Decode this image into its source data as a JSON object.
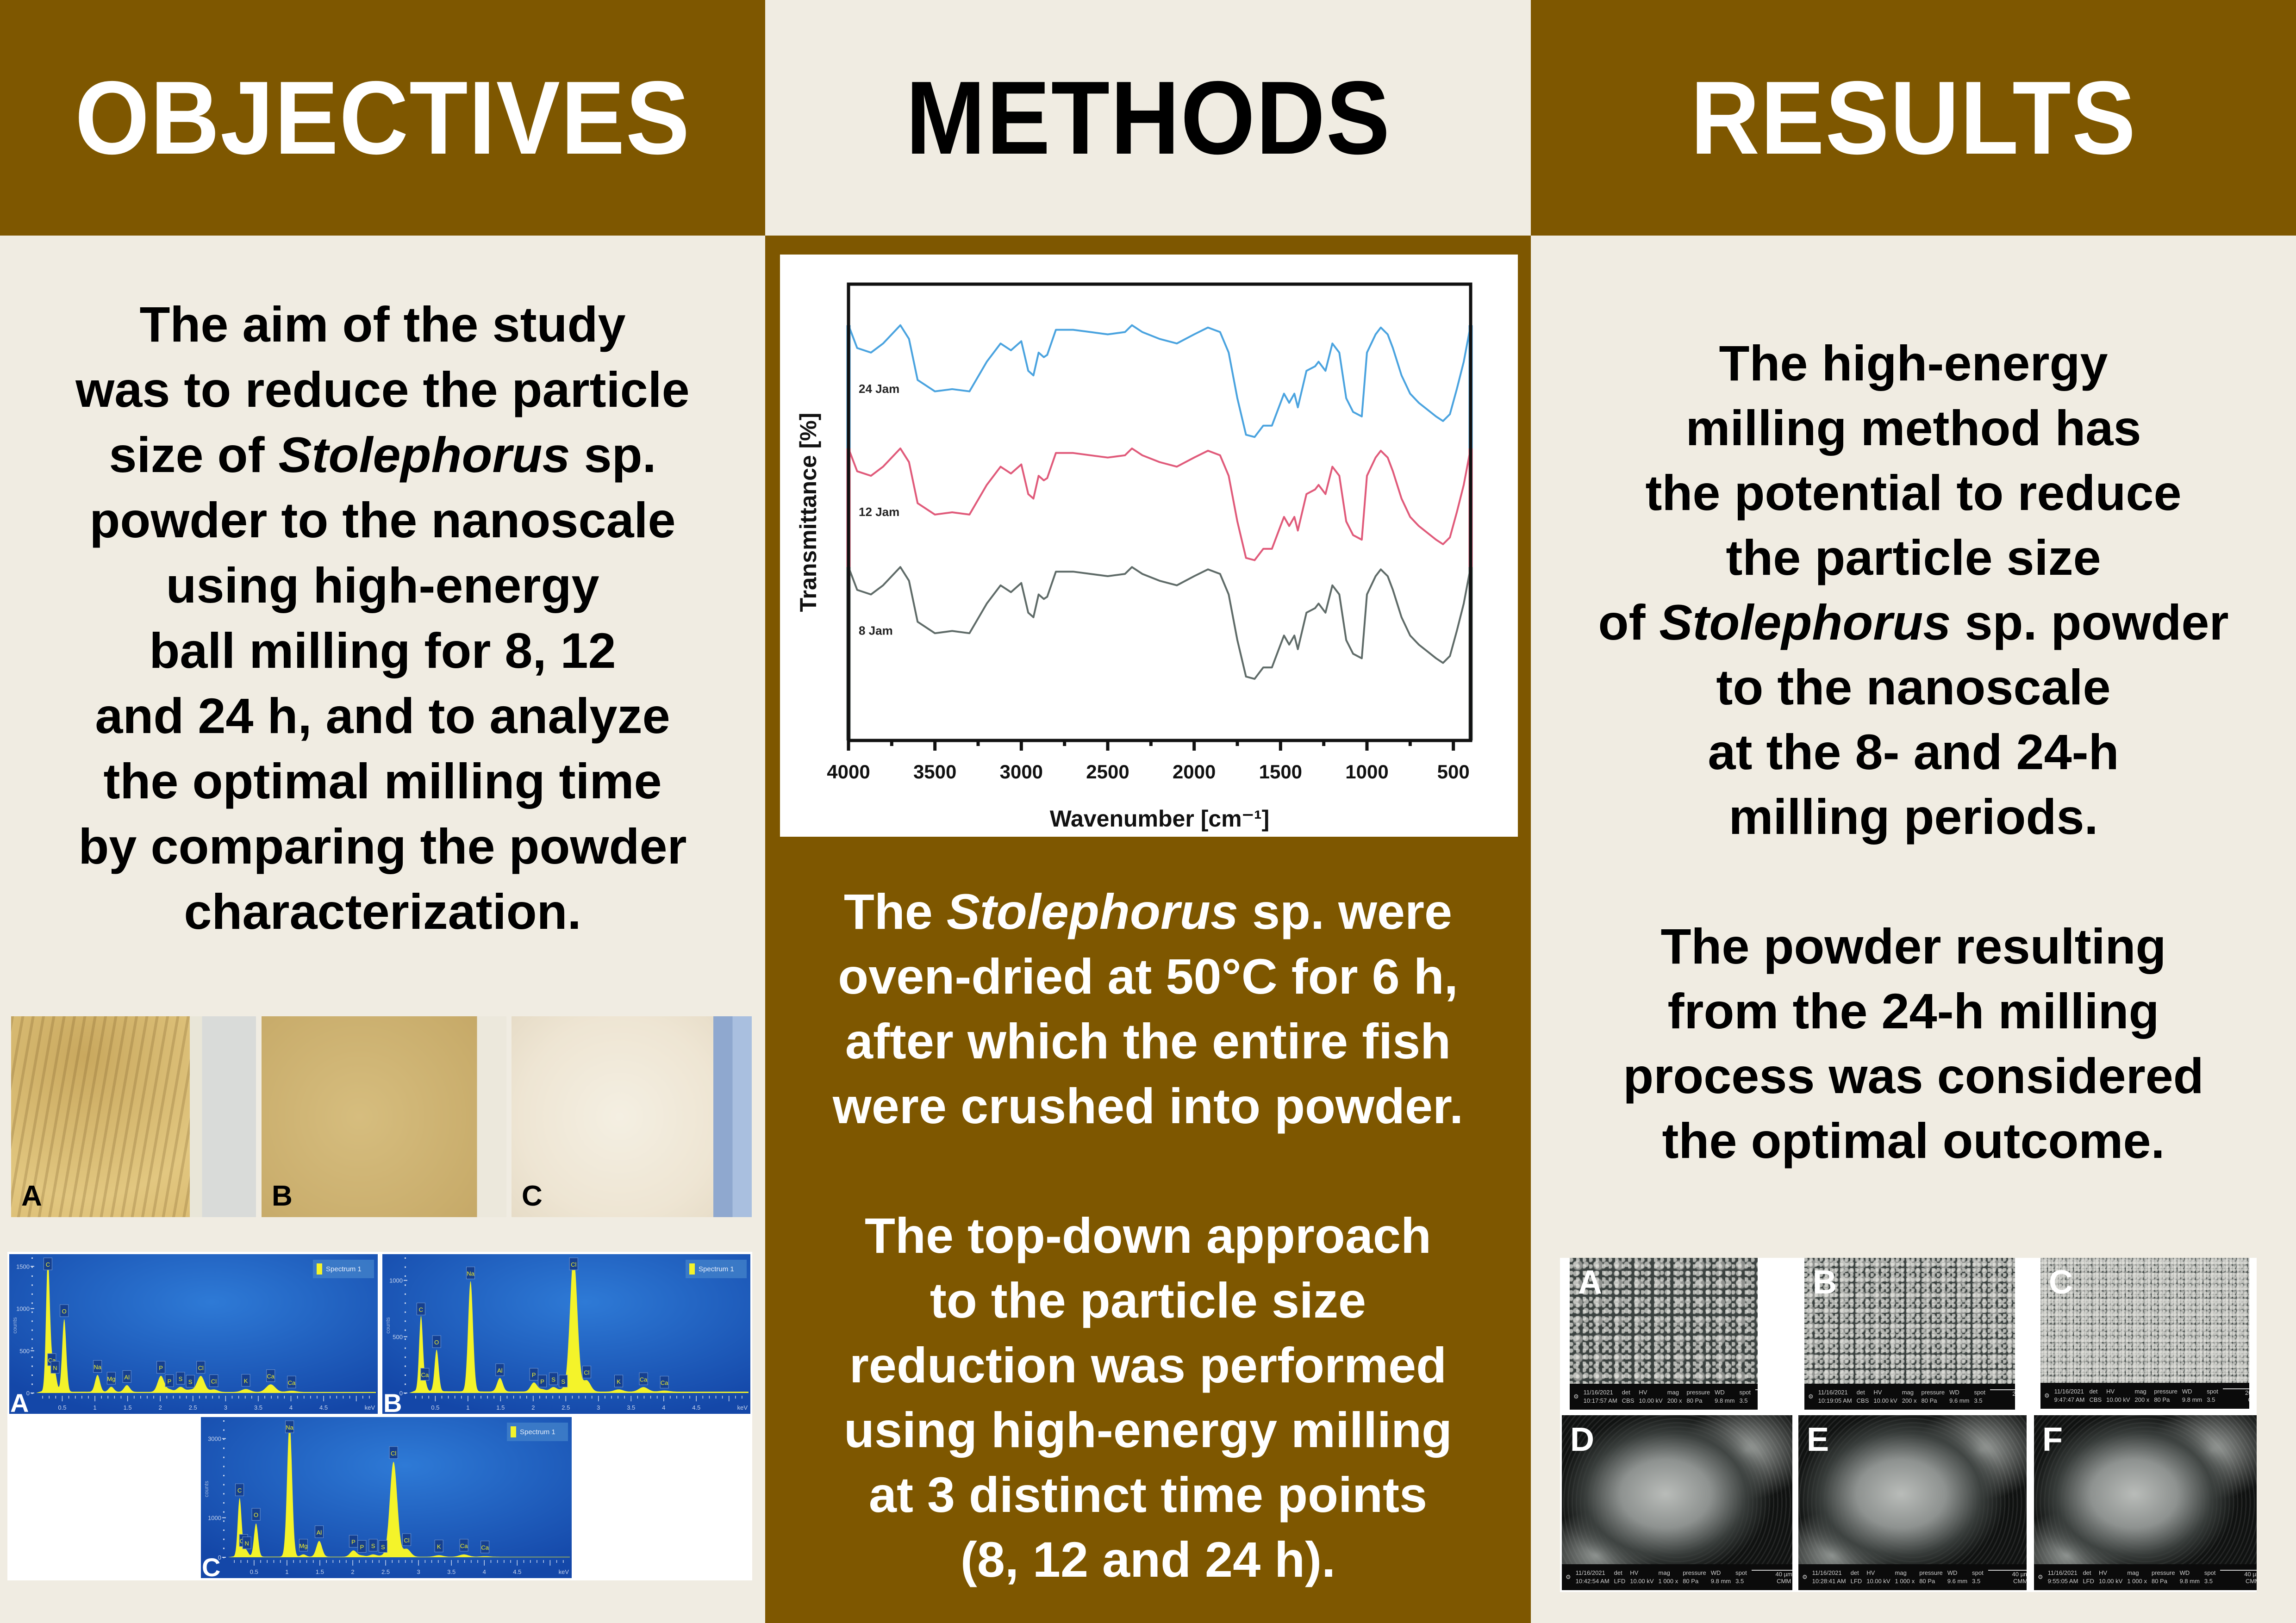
{
  "colors": {
    "brown": "#7E5700",
    "cream": "#F0ECE2",
    "white": "#FFFFFF",
    "trace_24h": "#4AA3DF",
    "trace_12h": "#E05A7A",
    "trace_8h": "#5F6B68",
    "eds_bg": "#1A56B8",
    "eds_peak": "#F4F32A"
  },
  "objectives": {
    "header": "OBJECTIVES",
    "text_lines": [
      "The aim of the study",
      "was to reduce the particle",
      [
        "size of ",
        "Stolephorus",
        " sp."
      ],
      "powder to the nanoscale",
      "using high-energy",
      "ball milling for 8, 12",
      "and 24 h, and to analyze",
      "the optimal milling time",
      "by comparing the powder",
      "characterization."
    ],
    "photos": [
      {
        "label": "A",
        "description": "coarse yellow fish powder (8 h)"
      },
      {
        "label": "B",
        "description": "fine tan powder (12 h)"
      },
      {
        "label": "C",
        "description": "off-white fine powder (24 h)"
      }
    ],
    "eds": [
      {
        "label": "A",
        "legend": "Spectrum 1",
        "y_axis_label": "counts",
        "x_unit": "keV",
        "y_ticks": [
          0,
          500,
          1000,
          1500
        ],
        "y_max": 1600,
        "x_ticks": [
          "0.5",
          "1",
          "1.5",
          "2",
          "2.5",
          "3",
          "3.5",
          "4",
          "4.5"
        ],
        "peaks": [
          {
            "el": "C",
            "kev": 0.28,
            "counts": 1560
          },
          {
            "el": "Ca",
            "kev": 0.34,
            "counts": 280
          },
          {
            "el": "N",
            "kev": 0.39,
            "counts": 190
          },
          {
            "el": "O",
            "kev": 0.53,
            "counts": 860
          },
          {
            "el": "Na",
            "kev": 1.04,
            "counts": 200
          },
          {
            "el": "Mg",
            "kev": 1.25,
            "counts": 60
          },
          {
            "el": "Al",
            "kev": 1.49,
            "counts": 80
          },
          {
            "el": "P",
            "kev": 2.01,
            "counts": 190
          },
          {
            "el": "P",
            "kev": 2.14,
            "counts": 30
          },
          {
            "el": "S",
            "kev": 2.31,
            "counts": 60
          },
          {
            "el": "S",
            "kev": 2.46,
            "counts": 25
          },
          {
            "el": "Cl",
            "kev": 2.62,
            "counts": 190
          },
          {
            "el": "Cl",
            "kev": 2.82,
            "counts": 30
          },
          {
            "el": "K",
            "kev": 3.31,
            "counts": 35
          },
          {
            "el": "Ca",
            "kev": 3.69,
            "counts": 90
          },
          {
            "el": "Ca",
            "kev": 4.01,
            "counts": 15
          }
        ]
      },
      {
        "label": "B",
        "legend": "Spectrum 1",
        "y_axis_label": "counts",
        "x_unit": "keV",
        "y_ticks": [
          0,
          500,
          1000
        ],
        "y_max": 1200,
        "x_ticks": [
          "0.5",
          "1",
          "1.5",
          "2",
          "2.5",
          "3",
          "3.5",
          "4",
          "4.5"
        ],
        "peaks": [
          {
            "el": "C",
            "kev": 0.28,
            "counts": 660
          },
          {
            "el": "Ca",
            "kev": 0.34,
            "counts": 80
          },
          {
            "el": "O",
            "kev": 0.52,
            "counts": 370
          },
          {
            "el": "Na",
            "kev": 1.04,
            "counts": 980
          },
          {
            "el": "Al",
            "kev": 1.49,
            "counts": 120
          },
          {
            "el": "P",
            "kev": 2.01,
            "counts": 80
          },
          {
            "el": "P",
            "kev": 2.14,
            "counts": 20
          },
          {
            "el": "S",
            "kev": 2.31,
            "counts": 40
          },
          {
            "el": "S",
            "kev": 2.46,
            "counts": 20
          },
          {
            "el": "Cl",
            "kev": 2.62,
            "counts": 1200
          },
          {
            "el": "Cl",
            "kev": 2.82,
            "counts": 100
          },
          {
            "el": "K",
            "kev": 3.31,
            "counts": 20
          },
          {
            "el": "Ca",
            "kev": 3.69,
            "counts": 40
          },
          {
            "el": "Ca",
            "kev": 4.01,
            "counts": 10
          }
        ]
      },
      {
        "label": "C",
        "legend": "Spectrum 1",
        "y_axis_label": "counts",
        "x_unit": "keV",
        "y_ticks": [
          0,
          1000,
          3000
        ],
        "y_max": 3450,
        "x_ticks": [
          "0.5",
          "1",
          "1.5",
          "2",
          "2.5",
          "3",
          "3.5",
          "4",
          "4.5"
        ],
        "peaks": [
          {
            "el": "C",
            "kev": 0.28,
            "counts": 1460
          },
          {
            "el": "Ca",
            "kev": 0.34,
            "counts": 180
          },
          {
            "el": "N",
            "kev": 0.39,
            "counts": 120
          },
          {
            "el": "O",
            "kev": 0.53,
            "counts": 840
          },
          {
            "el": "Na",
            "kev": 1.04,
            "counts": 3400
          },
          {
            "el": "Mg",
            "kev": 1.25,
            "counts": 60
          },
          {
            "el": "Al",
            "kev": 1.49,
            "counts": 400
          },
          {
            "el": "P",
            "kev": 2.01,
            "counts": 160
          },
          {
            "el": "P",
            "kev": 2.14,
            "counts": 30
          },
          {
            "el": "S",
            "kev": 2.31,
            "counts": 60
          },
          {
            "el": "S",
            "kev": 2.46,
            "counts": 30
          },
          {
            "el": "Cl",
            "kev": 2.62,
            "counts": 2400
          },
          {
            "el": "Cl",
            "kev": 2.82,
            "counts": 200
          },
          {
            "el": "K",
            "kev": 3.31,
            "counts": 40
          },
          {
            "el": "Ca",
            "kev": 3.69,
            "counts": 60
          },
          {
            "el": "Ca",
            "kev": 4.01,
            "counts": 15
          }
        ]
      }
    ]
  },
  "methods": {
    "header": "METHODS",
    "paragraphs": [
      [
        [
          "The ",
          "Stolephorus",
          " sp. were"
        ],
        "oven-dried at 50°C for 6 h,",
        "after which the entire fish",
        "were crushed into powder."
      ],
      [
        "The top-down approach",
        "to the particle size",
        "reduction was performed",
        "using high-energy milling",
        "at 3 distinct time points",
        "(8, 12 and 24 h)."
      ]
    ]
  },
  "results": {
    "header": "RESULTS",
    "paragraphs": [
      [
        "The high-energy",
        "milling method has",
        "the potential to reduce",
        "the particle size",
        [
          "of ",
          "Stolephorus",
          " sp. powder"
        ],
        "to the nanoscale",
        "at the 8- and 24-h",
        "milling periods."
      ],
      [
        "The powder resulting",
        "from the 24-h milling",
        "process was considered",
        "the optimal outcome."
      ]
    ],
    "sem": [
      {
        "label": "A",
        "date": "11/16/2021",
        "time": "10:17:57 AM",
        "det": "CBS",
        "hv": "10.00 kV",
        "mag": "200 x",
        "pressure": "80 Pa",
        "wd": "9.8 mm",
        "spot": "3.5",
        "scale": "200 µm",
        "org": "CMM"
      },
      {
        "label": "B",
        "date": "11/16/2021",
        "time": "10:19:05 AM",
        "det": "CBS",
        "hv": "10.00 kV",
        "mag": "200 x",
        "pressure": "80 Pa",
        "wd": "9.6 mm",
        "spot": "3.5",
        "scale": "200 µm",
        "org": "CMM"
      },
      {
        "label": "C",
        "date": "11/16/2021",
        "time": "9:47:47 AM",
        "det": "CBS",
        "hv": "10.00 kV",
        "mag": "200 x",
        "pressure": "80 Pa",
        "wd": "9.8 mm",
        "spot": "3.5",
        "scale": "200 µm",
        "org": "CMM"
      },
      {
        "label": "D",
        "date": "11/16/2021",
        "time": "10:42:54 AM",
        "det": "LFD",
        "hv": "10.00 kV",
        "mag": "1 000 x",
        "pressure": "80 Pa",
        "wd": "9.8 mm",
        "spot": "3.5",
        "scale": "40 µm",
        "org": "CMM"
      },
      {
        "label": "E",
        "date": "11/16/2021",
        "time": "10:28:41 AM",
        "det": "LFD",
        "hv": "10.00 kV",
        "mag": "1 000 x",
        "pressure": "80 Pa",
        "wd": "9.6 mm",
        "spot": "3.5",
        "scale": "40 µm",
        "org": "CMM"
      },
      {
        "label": "F",
        "date": "11/16/2021",
        "time": "9:55:05 AM",
        "det": "LFD",
        "hv": "10.00 kV",
        "mag": "1 000 x",
        "pressure": "80 Pa",
        "wd": "9.8 mm",
        "spot": "3.5",
        "scale": "40 µm",
        "org": "CMM"
      }
    ]
  },
  "chart_data": {
    "type": "line",
    "title": "",
    "xlabel": "Wavenumber [cm⁻¹]",
    "ylabel": "Transmittance [%]",
    "xlim": [
      4000,
      400
    ],
    "x_ticks": [
      4000,
      3500,
      3000,
      2500,
      2000,
      1500,
      1000,
      500
    ],
    "y_ticks": [],
    "grid": false,
    "legend": "inline labels at left",
    "note": "Stacked (vertically offset) FTIR spectra; y values in relative units (0=top of frame, 100=bottom). Offsets: 24 Jam 0, 12 Jam +27, 8 Jam +53.",
    "x": [
      4000,
      3950,
      3870,
      3800,
      3700,
      3650,
      3600,
      3500,
      3400,
      3300,
      3200,
      3120,
      3060,
      3000,
      2960,
      2930,
      2900,
      2870,
      2850,
      2800,
      2700,
      2600,
      2500,
      2400,
      2360,
      2300,
      2200,
      2100,
      2000,
      1920,
      1850,
      1800,
      1750,
      1700,
      1650,
      1600,
      1550,
      1500,
      1480,
      1450,
      1420,
      1400,
      1350,
      1300,
      1280,
      1240,
      1200,
      1160,
      1120,
      1080,
      1030,
      1000,
      950,
      920,
      880,
      850,
      800,
      750,
      700,
      650,
      600,
      560,
      520,
      480,
      440,
      400
    ],
    "series": [
      {
        "name": "24 Jam",
        "color": "#4AA3DF",
        "offset": 0,
        "values": [
          9,
          14,
          15,
          13,
          9,
          12,
          21,
          23.5,
          23,
          23.5,
          17,
          13,
          14.5,
          12.5,
          19,
          20,
          15,
          16,
          15.5,
          10,
          10,
          10.5,
          11,
          10.5,
          9,
          10.5,
          12,
          13,
          11,
          9.5,
          10.5,
          15,
          25,
          33,
          33.5,
          31,
          31,
          26,
          24,
          26,
          24,
          27,
          19,
          18,
          17,
          19,
          13,
          15,
          25,
          28,
          29,
          15,
          11,
          9.5,
          11,
          14,
          20,
          24,
          26,
          27.5,
          29,
          30,
          28.5,
          23,
          17,
          9
        ]
      },
      {
        "name": "12 Jam",
        "color": "#E05A7A",
        "offset": 27,
        "values": [
          9,
          14,
          15,
          13,
          9,
          12,
          21,
          23.5,
          23,
          23.5,
          17,
          13,
          14.5,
          12.5,
          19,
          20,
          15,
          16,
          15.5,
          10,
          10,
          10.5,
          11,
          10.5,
          9,
          10.5,
          12,
          13,
          11,
          9.5,
          10.5,
          15,
          25,
          33,
          33.5,
          31,
          31,
          26,
          24,
          26,
          24,
          27,
          19,
          18,
          17,
          19,
          13,
          15,
          25,
          28,
          29,
          15,
          11,
          9.5,
          11,
          14,
          20,
          24,
          26,
          27.5,
          29,
          30,
          28.5,
          23,
          17,
          9
        ]
      },
      {
        "name": "8 Jam",
        "color": "#5F6B68",
        "offset": 53,
        "values": [
          9,
          14,
          15,
          13,
          9,
          12,
          21,
          23.5,
          23,
          23.5,
          17,
          13,
          14.5,
          12.5,
          19,
          20,
          15,
          16,
          15.5,
          10,
          10,
          10.5,
          11,
          10.5,
          9,
          10.5,
          12,
          13,
          11,
          9.5,
          10.5,
          15,
          25,
          33,
          33.5,
          31,
          31,
          26,
          24,
          26,
          24,
          27,
          19,
          18,
          17,
          19,
          13,
          15,
          25,
          28,
          29,
          15,
          11,
          9.5,
          11,
          14,
          20,
          24,
          26,
          27.5,
          29,
          30,
          28.5,
          23,
          17,
          9
        ]
      }
    ]
  }
}
